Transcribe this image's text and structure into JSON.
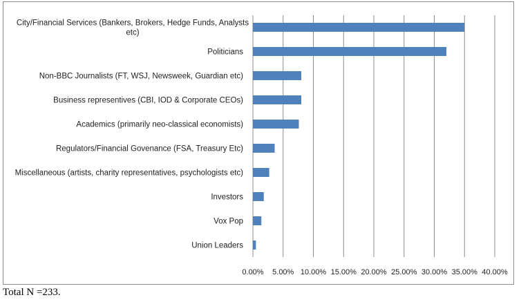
{
  "chart_data": {
    "type": "bar",
    "orientation": "horizontal",
    "categories": [
      [
        "City/Financial Services (Bankers, Brokers, Hedge Funds, Analysts",
        "etc)"
      ],
      [
        "Politicians"
      ],
      [
        "Non-BBC Journalists (FT, WSJ, Newsweek, Guardian etc)"
      ],
      [
        "Business representives (CBI, IOD & Corporate CEOs)"
      ],
      [
        "Academics (primarily neo-classical economists)"
      ],
      [
        "Regulators/Financial Govenance (FSA, Treasury Etc)"
      ],
      [
        "Miscellaneous (artists, charity representatives, psychologists etc)"
      ],
      [
        "Investors"
      ],
      [
        "Vox Pop"
      ],
      [
        "Union Leaders"
      ]
    ],
    "values": [
      35.0,
      32.0,
      8.0,
      8.0,
      7.6,
      3.6,
      2.7,
      1.8,
      1.4,
      0.5
    ],
    "xlim": [
      0,
      40
    ],
    "xticks": [
      "0.00%",
      "5.00%",
      "10.00%",
      "15.00%",
      "20.00%",
      "25.00%",
      "30.00%",
      "35.00%",
      "40.00%"
    ],
    "grid": "vertical",
    "bar_color": "#4f81bd",
    "grid_color": "#8c8c8c"
  },
  "footnote": "Total N =233."
}
